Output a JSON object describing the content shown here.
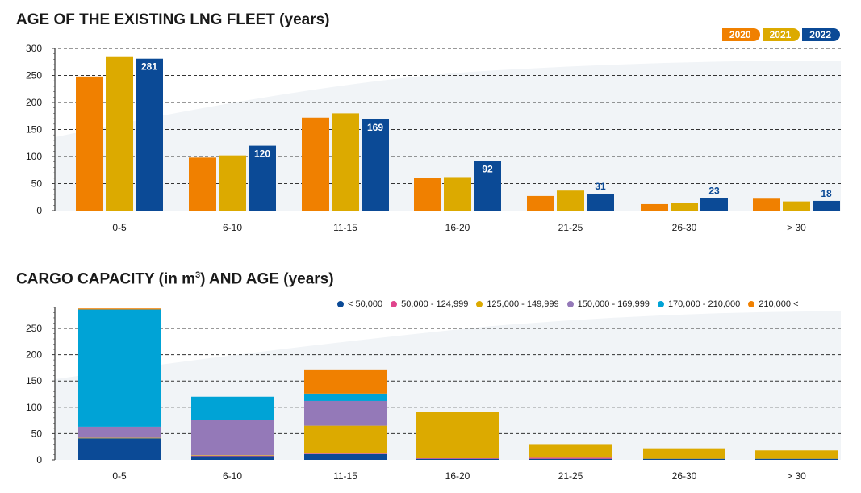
{
  "colors": {
    "c2020": "#f08000",
    "c2021": "#dcaa00",
    "c2022": "#0b4a96"
  },
  "legend_top": [
    {
      "label": "2020",
      "color": "#f08000"
    },
    {
      "label": "2021",
      "color": "#dcaa00"
    },
    {
      "label": "2022",
      "color": "#0b4a96"
    }
  ],
  "legend_bottom": [
    {
      "label": "< 50,000",
      "color": "#0b4a96"
    },
    {
      "label": "50,000 - 124,999",
      "color": "#e0448c"
    },
    {
      "label": "125,000 - 149,999",
      "color": "#dcaa00"
    },
    {
      "label": "150,000 - 169,999",
      "color": "#9479b8"
    },
    {
      "label": "170,000 - 210,000",
      "color": "#00a3d6"
    },
    {
      "label": "210,000 <",
      "color": "#f08000"
    }
  ],
  "chart_data": [
    {
      "type": "bar",
      "title": "AGE OF THE EXISTING LNG FLEET (years)",
      "categories": [
        "0-5",
        "6-10",
        "11-15",
        "16-20",
        "21-25",
        "26-30",
        "> 30"
      ],
      "series": [
        {
          "name": "2020",
          "values": [
            248,
            98,
            172,
            61,
            27,
            12,
            22
          ]
        },
        {
          "name": "2021",
          "values": [
            284,
            102,
            180,
            62,
            37,
            14,
            17
          ]
        },
        {
          "name": "2022",
          "values": [
            281,
            120,
            169,
            92,
            31,
            23,
            18
          ]
        }
      ],
      "data_labels_2022": [
        "281",
        "120",
        "169",
        "92",
        "31",
        "23",
        "18"
      ],
      "yticks": [
        "300",
        "250",
        "200",
        "150",
        "100",
        "50",
        "0"
      ],
      "ylim": [
        0,
        300
      ],
      "grid": "dashed horizontal",
      "legend": "top-right"
    },
    {
      "type": "bar",
      "stacked": true,
      "title": "CARGO CAPACITY (in m3) AND AGE (years)",
      "categories": [
        "0-5",
        "6-10",
        "11-15",
        "16-20",
        "21-25",
        "26-30",
        "> 30"
      ],
      "series": [
        {
          "name": "< 50,000",
          "values": [
            41,
            7,
            11,
            2,
            2,
            2,
            2
          ]
        },
        {
          "name": "50,000 - 124,999",
          "values": [
            0,
            1,
            1,
            1,
            2,
            0,
            0
          ]
        },
        {
          "name": "125,000 - 149,999",
          "values": [
            1,
            1,
            53,
            89,
            26,
            20,
            16
          ]
        },
        {
          "name": "150,000 - 169,999",
          "values": [
            21,
            67,
            47,
            0,
            0,
            0,
            0
          ]
        },
        {
          "name": "170,000 - 210,000",
          "values": [
            223,
            44,
            14,
            0,
            0,
            0,
            0
          ]
        },
        {
          "name": "210,000 <",
          "values": [
            2,
            0,
            46,
            0,
            0,
            0,
            0
          ]
        }
      ],
      "yticks": [
        "250",
        "200",
        "150",
        "100",
        "50",
        "0"
      ],
      "ylim": [
        0,
        290
      ],
      "grid": "dashed horizontal",
      "legend": "top-right"
    }
  ]
}
